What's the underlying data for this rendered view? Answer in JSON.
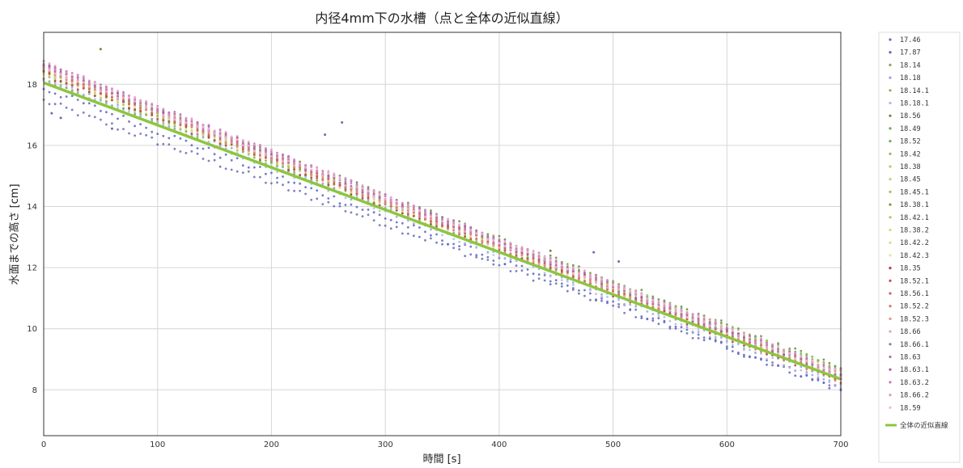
{
  "chart_data": {
    "type": "scatter",
    "title": "内径4mm下の水槽（点と全体の近似直線）",
    "xlabel": "時間 [s]",
    "ylabel": "水面までの高さ [cm]",
    "xlim": [
      0,
      700
    ],
    "ylim": [
      6.5,
      19.7
    ],
    "xticks": [
      "0",
      "100",
      "200",
      "300",
      "400",
      "500",
      "600",
      "700"
    ],
    "yticks": [
      "8",
      "10",
      "12",
      "14",
      "16",
      "18"
    ],
    "grid": true,
    "legend_position": "right-outside",
    "series": [
      {
        "name": "17.46",
        "color": "#6a6ab5",
        "start": 17.46,
        "end": 8.05
      },
      {
        "name": "17.87",
        "color": "#5a64c8",
        "start": 17.87,
        "end": 8.0
      },
      {
        "name": "18.14",
        "color": "#8fa060",
        "start": 18.14,
        "end": 8.45
      },
      {
        "name": "18.18",
        "color": "#9aa0d8",
        "start": 18.18,
        "end": 8.2
      },
      {
        "name": "18.14.1",
        "color": "#88b050",
        "start": 18.14,
        "end": 8.5
      },
      {
        "name": "18.18.1",
        "color": "#b0b8e8",
        "start": 18.18,
        "end": 8.15
      },
      {
        "name": "18.56",
        "color": "#6a8a3a",
        "start": 18.56,
        "end": 8.7
      },
      {
        "name": "18.49",
        "color": "#6aa860",
        "start": 18.49,
        "end": 8.6
      },
      {
        "name": "18.52",
        "color": "#7aa850",
        "start": 18.52,
        "end": 8.65
      },
      {
        "name": "18.42",
        "color": "#a0b850",
        "start": 18.42,
        "end": 8.5
      },
      {
        "name": "18.38",
        "color": "#c0c860",
        "start": 18.38,
        "end": 8.55
      },
      {
        "name": "18.45",
        "color": "#c8d070",
        "start": 18.45,
        "end": 8.45
      },
      {
        "name": "18.45.1",
        "color": "#9cc860",
        "start": 18.45,
        "end": 8.6
      },
      {
        "name": "18.38.1",
        "color": "#7a9a3a",
        "start": 18.38,
        "end": 8.5
      },
      {
        "name": "18.42.1",
        "color": "#a8c858",
        "start": 18.42,
        "end": 8.55
      },
      {
        "name": "18.38.2",
        "color": "#d8d878",
        "start": 18.38,
        "end": 8.45
      },
      {
        "name": "18.42.2",
        "color": "#e0d890",
        "start": 18.42,
        "end": 8.5
      },
      {
        "name": "18.42.3",
        "color": "#e8e0a8",
        "start": 18.42,
        "end": 8.4
      },
      {
        "name": "18.35",
        "color": "#b83838",
        "start": 18.35,
        "end": 8.3
      },
      {
        "name": "18.52.1",
        "color": "#c84848",
        "start": 18.52,
        "end": 8.35
      },
      {
        "name": "18.56.1",
        "color": "#d06060",
        "start": 18.56,
        "end": 8.4
      },
      {
        "name": "18.52.2",
        "color": "#e07070",
        "start": 18.52,
        "end": 8.3
      },
      {
        "name": "18.52.3",
        "color": "#e89090",
        "start": 18.52,
        "end": 8.35
      },
      {
        "name": "18.66",
        "color": "#e0a0c0",
        "start": 18.66,
        "end": 8.55
      },
      {
        "name": "18.66.1",
        "color": "#9a70a8",
        "start": 18.66,
        "end": 8.5
      },
      {
        "name": "18.63",
        "color": "#b070b0",
        "start": 18.63,
        "end": 8.5
      },
      {
        "name": "18.63.1",
        "color": "#a060a0",
        "start": 18.63,
        "end": 8.45
      },
      {
        "name": "18.63.2",
        "color": "#c878b8",
        "start": 18.63,
        "end": 8.5
      },
      {
        "name": "18.66.2",
        "color": "#e890c8",
        "start": 18.66,
        "end": 8.55
      },
      {
        "name": "18.59",
        "color": "#f0b8d8",
        "start": 18.59,
        "end": 8.5
      }
    ],
    "fit_line": {
      "name": "全体の近似直線",
      "color": "#8cc63f",
      "start": 18.05,
      "end": 8.35
    }
  }
}
